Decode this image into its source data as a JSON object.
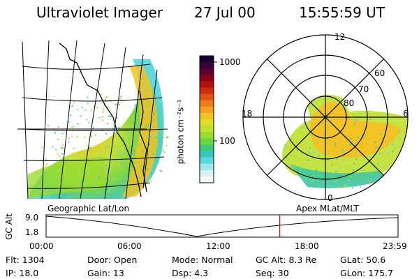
{
  "header": {
    "instrument": "Ultraviolet Imager",
    "date": "27 Jul 00",
    "time": "15:55:59 UT"
  },
  "colorbar": {
    "unit_label": "photon cm⁻²s⁻¹",
    "ticks": [
      "1000",
      "100"
    ],
    "colors": [
      "#1a0030",
      "#3a003f",
      "#5a0030",
      "#8a0018",
      "#b01010",
      "#d02a10",
      "#e25214",
      "#ef7a1a",
      "#f5a020",
      "#f2c323",
      "#e0dc28",
      "#c0e030",
      "#98dc30",
      "#6cd43c",
      "#40c878",
      "#34c8c0",
      "#58d8e0",
      "#a0e6ee",
      "#d8f0f4",
      "#f4f6f8"
    ]
  },
  "polar_plot": {
    "mlt_labels": [
      "12",
      "18",
      "6",
      "0"
    ],
    "lat_labels": [
      "60",
      "70",
      "80"
    ],
    "coordinate_label": "Apex MLat/MLT"
  },
  "geo_plot": {
    "coordinate_label": "Geographic Lat/Lon"
  },
  "altitude_panel": {
    "ylabel": "GC Alt",
    "y_ticks": [
      "9.0",
      "1.8"
    ],
    "x_ticks": [
      "00:00",
      "06:00",
      "12:00",
      "18:00",
      "23:59"
    ],
    "current_time_marker_hours": 15.93,
    "marker_color": "#ff0000"
  },
  "status": {
    "row1": {
      "flt": "Flt:  1304",
      "door": "Door:  Open",
      "mode": "Mode:  Normal",
      "gc_alt": "GC Alt:  8.3 Re",
      "glat": "GLat:   50.6"
    },
    "row2": {
      "ip": "IP:  18.0",
      "gain": "Gain:  13",
      "dsp": "Dsp:      4.3",
      "seq": "Seq:  30",
      "glon": "GLon:  175.7"
    }
  }
}
